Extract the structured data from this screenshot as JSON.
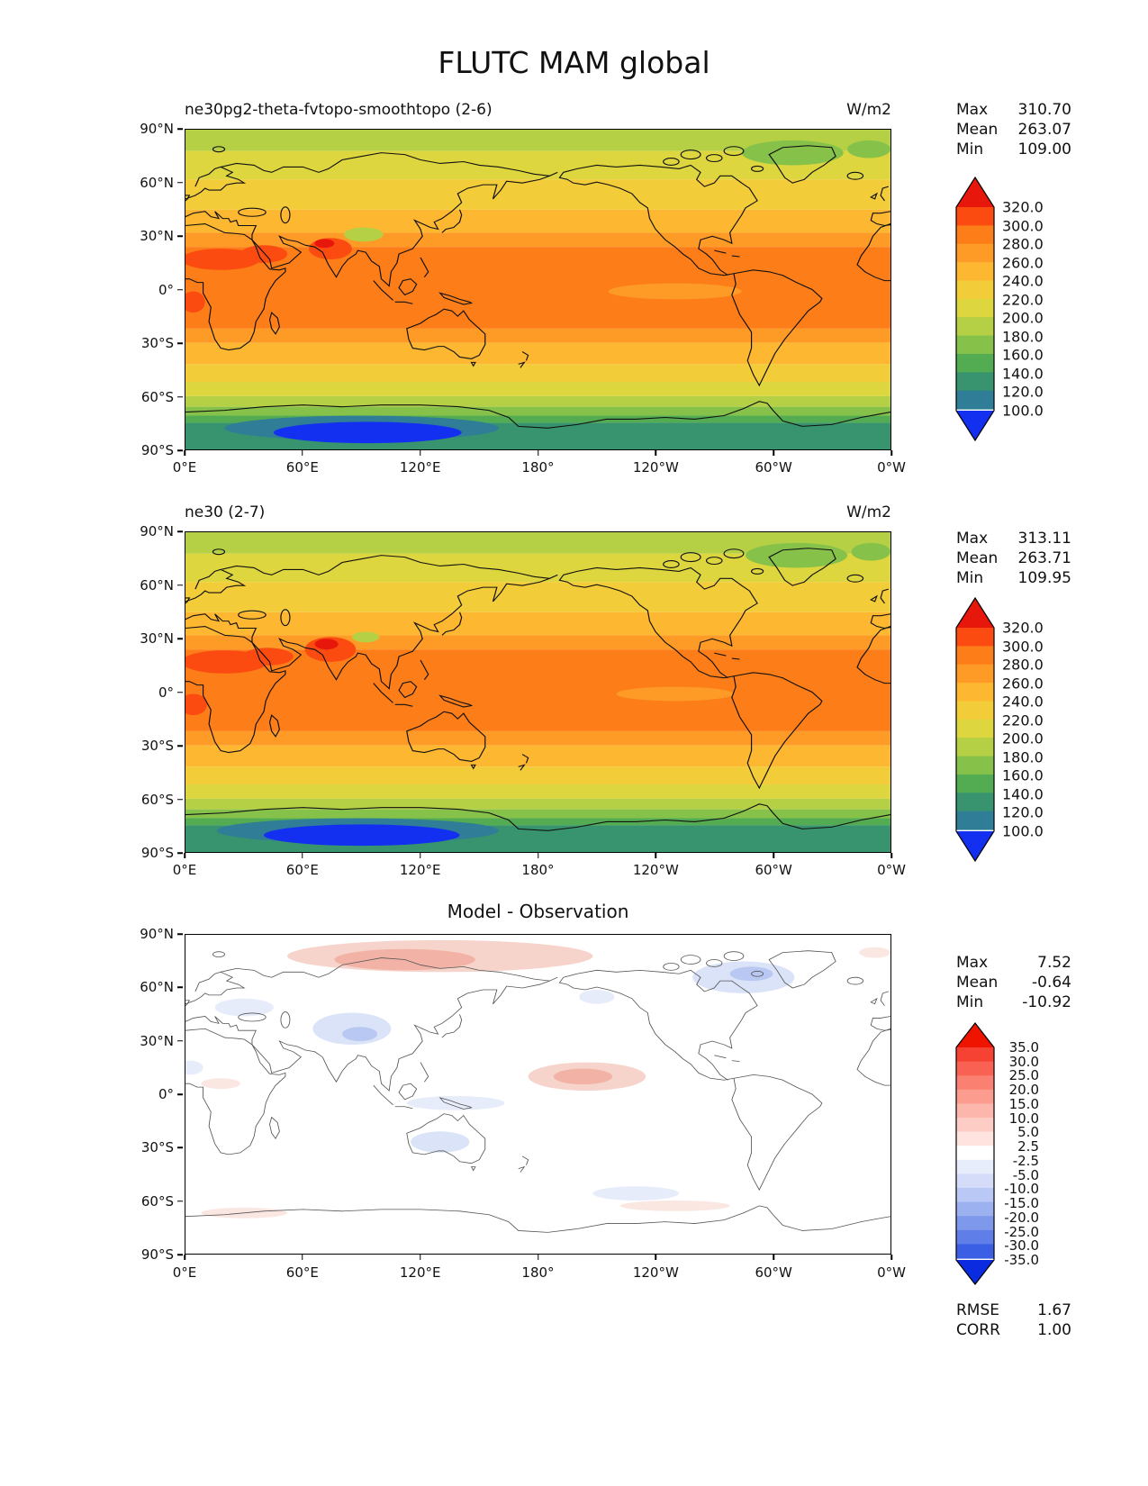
{
  "page_title": "FLUTC MAM global",
  "axes": {
    "x_ticks": [
      "0°E",
      "60°E",
      "120°E",
      "180°",
      "120°W",
      "60°W",
      "0°W"
    ],
    "y_ticks": [
      "90°N",
      "60°N",
      "30°N",
      "0°",
      "30°S",
      "60°S",
      "90°S"
    ]
  },
  "panels": [
    {
      "title": "ne30pg2-theta-fvtopo-smoothtopo (2-6)",
      "units": "W/m2",
      "stats": {
        "max_label": "Max",
        "max": "310.70",
        "mean_label": "Mean",
        "mean": "263.07",
        "min_label": "Min",
        "min": "109.00"
      }
    },
    {
      "title": "ne30 (2-7)",
      "units": "W/m2",
      "stats": {
        "max_label": "Max",
        "max": "313.11",
        "mean_label": "Mean",
        "mean": "263.71",
        "min_label": "Min",
        "min": "109.95"
      }
    },
    {
      "title": "Model - Observation",
      "stats": {
        "max_label": "Max",
        "max": "7.52",
        "mean_label": "Mean",
        "mean": "-0.64",
        "min_label": "Min",
        "min": "-10.92"
      },
      "extra": {
        "rmse_label": "RMSE",
        "rmse": "1.67",
        "corr_label": "CORR",
        "corr": "1.00"
      }
    }
  ],
  "colorbar_flux": {
    "labels": [
      "320.0",
      "300.0",
      "280.0",
      "260.0",
      "240.0",
      "220.0",
      "200.0",
      "180.0",
      "160.0",
      "140.0",
      "120.0",
      "100.0"
    ],
    "colors": [
      "#e8170b",
      "#fb4b10",
      "#fd7d19",
      "#fe9b27",
      "#fdb731",
      "#f3cc39",
      "#ddd63e",
      "#b5d044",
      "#86c24a",
      "#53ab52",
      "#37946f",
      "#2f7d96",
      "#1330f0"
    ]
  },
  "colorbar_diff": {
    "labels": [
      "35.0",
      "30.0",
      "25.0",
      "20.0",
      "15.0",
      "10.0",
      "5.0",
      "2.5",
      "-2.5",
      "-5.0",
      "-10.0",
      "-15.0",
      "-20.0",
      "-25.0",
      "-30.0",
      "-35.0"
    ],
    "colors": [
      "#ee1400",
      "#f64233",
      "#f96252",
      "#fa8071",
      "#fb9c8f",
      "#fcb6ab",
      "#fdcdc5",
      "#fee3de",
      "#ffffff",
      "#e8edfb",
      "#d4dcf9",
      "#b9c8f4",
      "#9cb2f0",
      "#7e99ec",
      "#5f7ee8",
      "#3a5fe5",
      "#0b2be0"
    ]
  },
  "chart_data": [
    {
      "type": "heatmap",
      "title": "ne30pg2-theta-fvtopo-smoothtopo (2-6)",
      "variable": "FLUTC",
      "season": "MAM",
      "region": "global",
      "units": "W/m2",
      "projection": "equirectangular",
      "x_ticks": [
        "0°E",
        "60°E",
        "120°E",
        "180°",
        "120°W",
        "60°W",
        "0°W"
      ],
      "y_ticks": [
        "90°N",
        "60°N",
        "30°N",
        "0°",
        "30°S",
        "60°S",
        "90°S"
      ],
      "stats": {
        "max": 310.7,
        "mean": 263.07,
        "min": 109.0
      },
      "contour_levels": [
        100,
        120,
        140,
        160,
        180,
        200,
        220,
        240,
        260,
        280,
        300,
        320
      ],
      "description": "Zonally banded outgoing clear-sky longwave flux: ~200-230 W/m2 at high northern latitudes, 240-260 in mid-latitudes, 280-300 across the tropics with >300 W/m2 over North Africa, Arabia and India, decreasing southward to 100-140 W/m2 over interior Antarctica."
    },
    {
      "type": "heatmap",
      "title": "ne30 (2-7)",
      "variable": "FLUTC",
      "season": "MAM",
      "region": "global",
      "units": "W/m2",
      "projection": "equirectangular",
      "x_ticks": [
        "0°E",
        "60°E",
        "120°E",
        "180°",
        "120°W",
        "60°W",
        "0°W"
      ],
      "y_ticks": [
        "90°N",
        "60°N",
        "30°N",
        "0°",
        "30°S",
        "60°S",
        "90°S"
      ],
      "stats": {
        "max": 313.11,
        "mean": 263.71,
        "min": 109.95
      },
      "contour_levels": [
        100,
        120,
        140,
        160,
        180,
        200,
        220,
        240,
        260,
        280,
        300,
        320
      ],
      "description": "Same banded structure as the first panel: tropical maximum 280-310 W/m2 (hot spots over Africa, Arabia, India), minimum 100-140 W/m2 over Antarctica."
    },
    {
      "type": "heatmap",
      "title": "Model - Observation",
      "projection": "equirectangular",
      "x_ticks": [
        "0°E",
        "60°E",
        "120°E",
        "180°",
        "120°W",
        "60°W",
        "0°W"
      ],
      "y_ticks": [
        "90°N",
        "60°N",
        "30°N",
        "0°",
        "30°S",
        "60°S",
        "90°S"
      ],
      "stats": {
        "max": 7.52,
        "mean": -0.64,
        "min": -10.92,
        "rmse": 1.67,
        "corr": 1.0
      },
      "contour_levels": [
        -35,
        -30,
        -25,
        -20,
        -15,
        -10,
        -5,
        -2.5,
        2.5,
        5,
        10,
        15,
        20,
        25,
        30,
        35
      ],
      "description": "Difference field mostly within ±2.5 (white); weak positive anomalies (+2.5 to +7.5) over Arctic Siberia and the central equatorial Pacific; weak negative anomalies (-2.5 to -10.9) over central Asia, eastern Canada/Greenland, Australia and scattered ocean patches."
    }
  ]
}
